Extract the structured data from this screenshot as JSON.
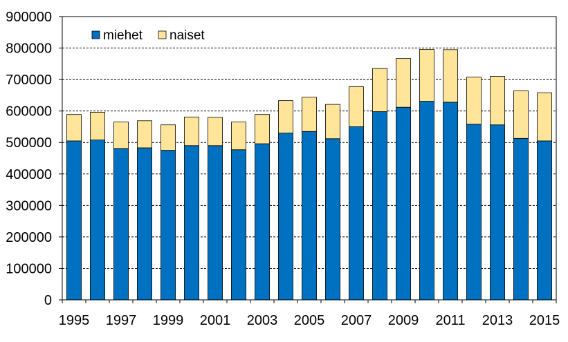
{
  "chart_data": {
    "type": "bar",
    "stacked": true,
    "title": "",
    "xlabel": "",
    "ylabel": "",
    "categories": [
      "1995",
      "1996",
      "1997",
      "1998",
      "1999",
      "2000",
      "2001",
      "2002",
      "2003",
      "2004",
      "2005",
      "2006",
      "2007",
      "2008",
      "2009",
      "2010",
      "2011",
      "2012",
      "2013",
      "2014",
      "2015"
    ],
    "x_tick_labels": [
      "1995",
      "1997",
      "1999",
      "2001",
      "2003",
      "2005",
      "2007",
      "2009",
      "2011",
      "2013",
      "2015"
    ],
    "y_ticks": [
      0,
      100000,
      200000,
      300000,
      400000,
      500000,
      600000,
      700000,
      800000,
      900000
    ],
    "ylim": [
      0,
      900000
    ],
    "grid": "horizontal dashed",
    "legend_position": "top-left",
    "series": [
      {
        "name": "miehet",
        "color": "#0070C0",
        "values": [
          505000,
          508000,
          481000,
          483000,
          475000,
          490000,
          490000,
          477000,
          496000,
          530000,
          535000,
          512000,
          550000,
          598000,
          612000,
          631000,
          628000,
          558000,
          556000,
          513000,
          505000
        ]
      },
      {
        "name": "naiset",
        "color": "#FFE59A",
        "values": [
          84000,
          88000,
          84000,
          86000,
          81000,
          91000,
          90000,
          88000,
          93000,
          103000,
          109000,
          109000,
          127000,
          137000,
          155000,
          165000,
          167000,
          150000,
          154000,
          151000,
          153000
        ]
      }
    ]
  }
}
